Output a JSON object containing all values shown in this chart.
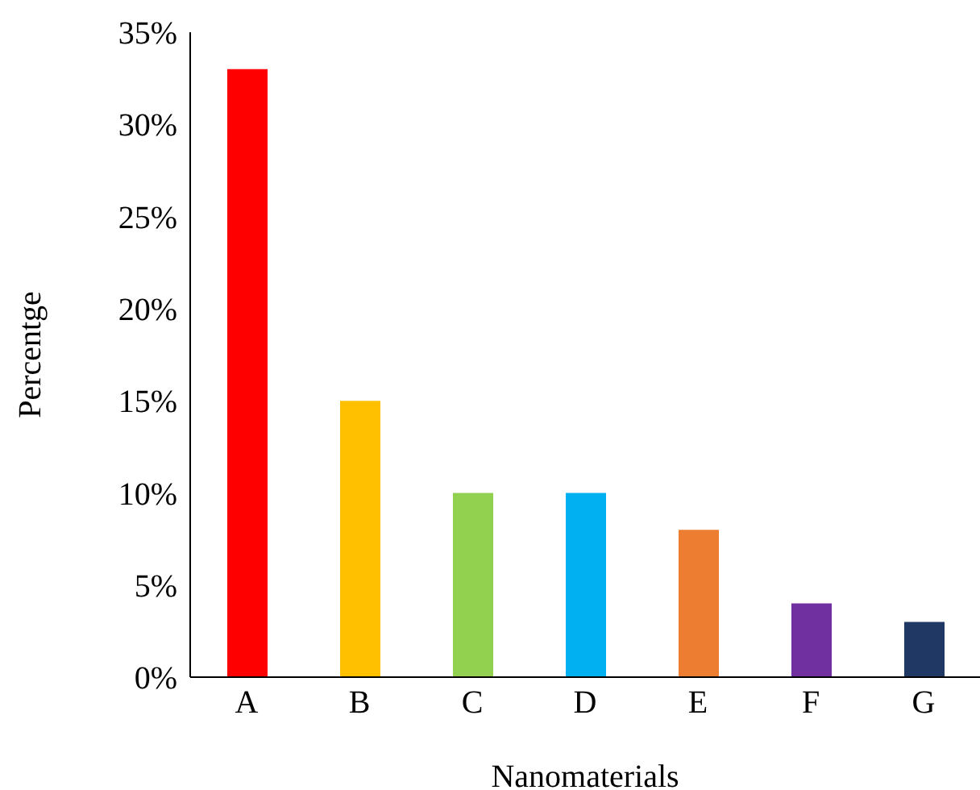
{
  "chart_data": {
    "type": "bar",
    "xlabel": "Nanomaterials",
    "ylabel": "Percentge",
    "categories": [
      "A",
      "B",
      "C",
      "D",
      "E",
      "F",
      "G"
    ],
    "values": [
      33,
      15,
      10,
      10,
      8,
      4,
      3
    ],
    "colors": [
      "#ff0000",
      "#ffc000",
      "#92d050",
      "#00b0f0",
      "#ed7d31",
      "#7030a0",
      "#1f3864"
    ],
    "ylim": [
      0,
      35
    ],
    "yticks": [
      {
        "value": 0,
        "label": "0%"
      },
      {
        "value": 5,
        "label": "5%"
      },
      {
        "value": 10,
        "label": "10%"
      },
      {
        "value": 15,
        "label": "15%"
      },
      {
        "value": 20,
        "label": "20%"
      },
      {
        "value": 25,
        "label": "25%"
      },
      {
        "value": 30,
        "label": "30%"
      },
      {
        "value": 35,
        "label": "35%"
      }
    ],
    "grid": false,
    "legend": false
  }
}
